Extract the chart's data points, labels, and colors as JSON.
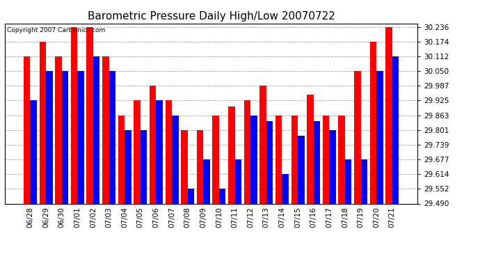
{
  "title": "Barometric Pressure Daily High/Low 20070722",
  "copyright": "Copyright 2007 Cartronics.com",
  "categories": [
    "06/28",
    "06/29",
    "06/30",
    "07/01",
    "07/02",
    "07/03",
    "07/04",
    "07/05",
    "07/06",
    "07/07",
    "07/08",
    "07/09",
    "07/10",
    "07/11",
    "07/12",
    "07/13",
    "07/14",
    "07/15",
    "07/16",
    "07/17",
    "07/18",
    "07/19",
    "07/20",
    "07/21"
  ],
  "high_values": [
    30.112,
    30.174,
    30.112,
    30.236,
    30.236,
    30.112,
    29.863,
    29.925,
    29.987,
    29.925,
    29.801,
    29.801,
    29.863,
    29.9,
    29.925,
    29.987,
    29.863,
    29.863,
    29.95,
    29.863,
    29.863,
    30.05,
    30.174,
    30.236
  ],
  "low_values": [
    29.925,
    30.05,
    30.05,
    30.05,
    30.112,
    30.05,
    29.801,
    29.801,
    29.925,
    29.863,
    29.552,
    29.677,
    29.552,
    29.677,
    29.863,
    29.839,
    29.614,
    29.777,
    29.839,
    29.801,
    29.677,
    29.677,
    30.05,
    30.112
  ],
  "high_color": "#ff0000",
  "low_color": "#0000ff",
  "bg_color": "#ffffff",
  "plot_bg_color": "#ffffff",
  "grid_color": "#999999",
  "ymin": 29.49,
  "ymax": 30.25,
  "yticks": [
    29.49,
    29.552,
    29.614,
    29.677,
    29.739,
    29.801,
    29.863,
    29.925,
    29.987,
    30.05,
    30.112,
    30.174,
    30.236
  ],
  "title_fontsize": 11,
  "tick_fontsize": 7.5,
  "bar_width": 0.42
}
